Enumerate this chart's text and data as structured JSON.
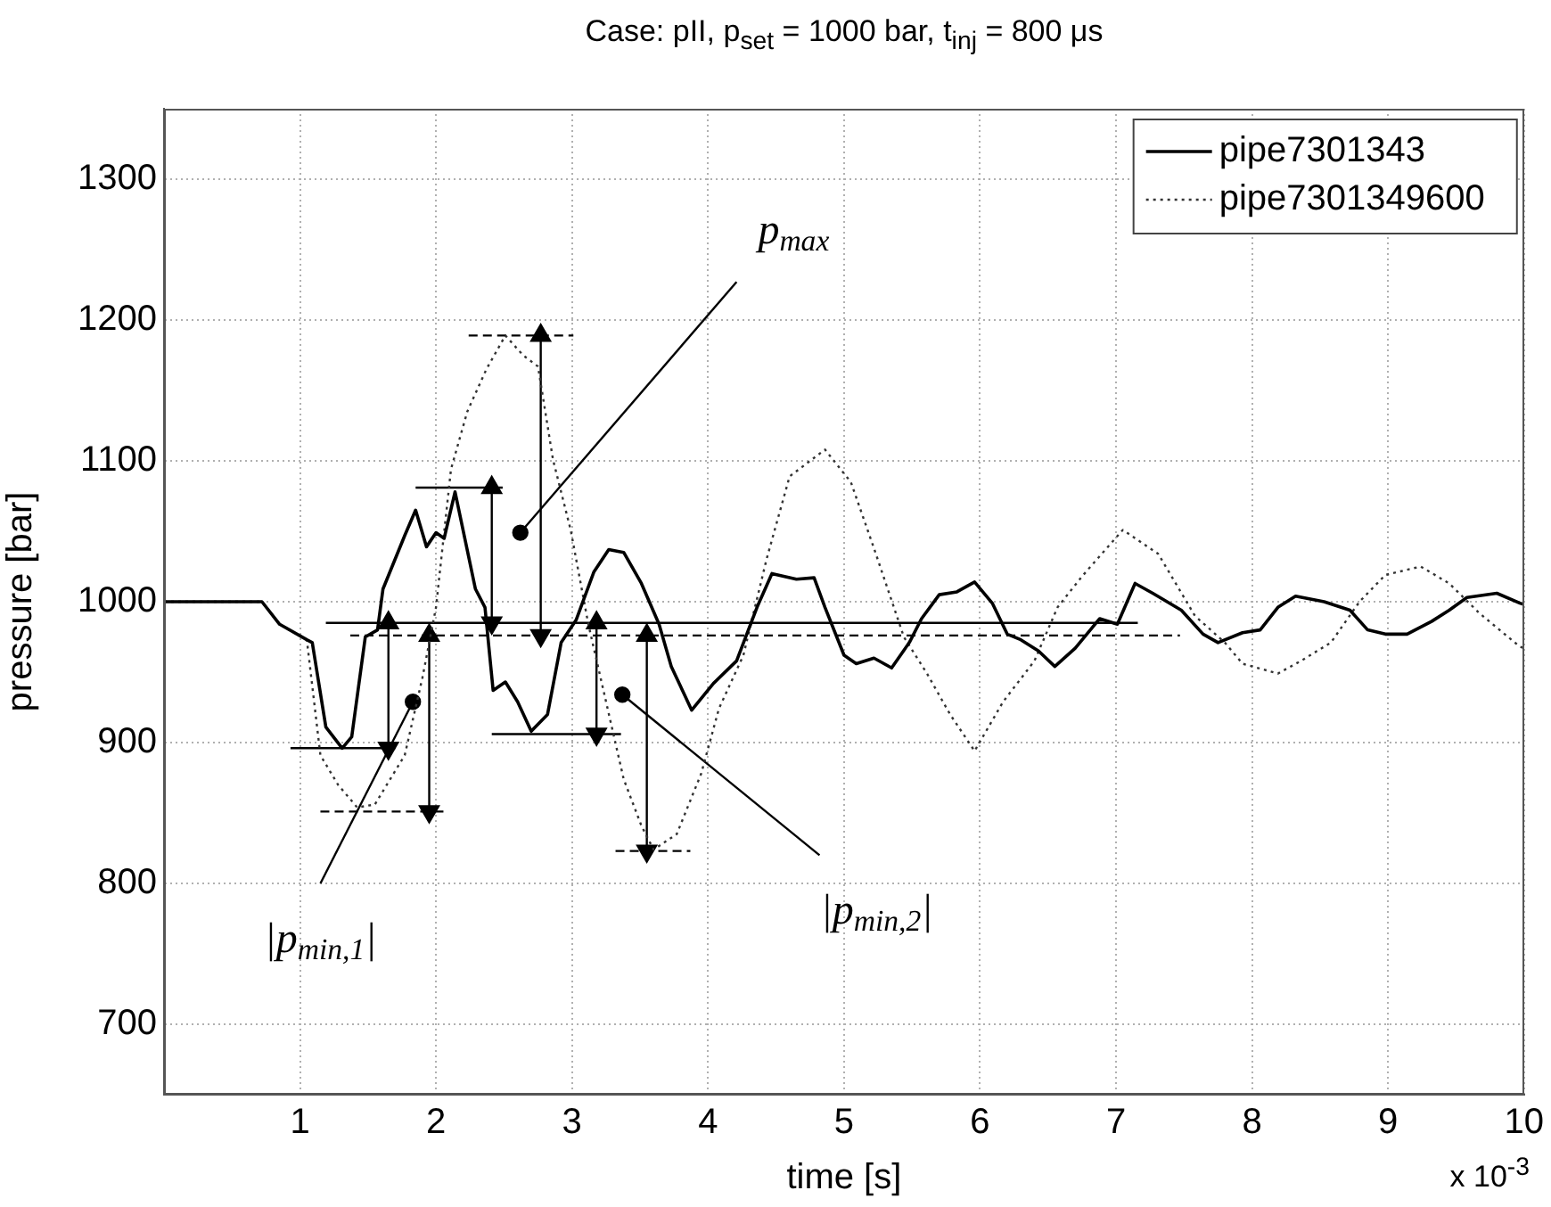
{
  "chart_data": {
    "type": "line",
    "title": "Case: pII, p$_{set}$ = 1000 bar, t$_{inj}$ = 800 μs",
    "xlabel": "time [s]",
    "ylabel": "pressure [bar]",
    "xlim": [
      0,
      10
    ],
    "ylim": [
      650,
      1350
    ],
    "xticks": [
      1,
      2,
      3,
      4,
      5,
      6,
      7,
      8,
      9,
      10
    ],
    "yticks": [
      700,
      800,
      900,
      1000,
      1100,
      1200,
      1300
    ],
    "grid": true,
    "legend": "top right",
    "series": [
      {
        "name": "pipe7301343",
        "color": "#000000",
        "line_style": "solid",
        "marker": "none",
        "x": [
          0,
          0.72,
          0.85,
          1.05,
          1.09,
          1.19,
          1.31,
          1.38,
          1.48,
          1.57,
          1.61,
          1.77,
          1.85,
          1.93,
          2.0,
          2.06,
          2.14,
          2.29,
          2.36,
          2.42,
          2.51,
          2.6,
          2.7,
          2.82,
          2.92,
          3.03,
          3.16,
          3.27,
          3.38,
          3.51,
          3.64,
          3.73,
          3.88,
          4.04,
          4.21,
          4.36,
          4.47,
          4.65,
          4.78,
          4.86,
          5.0,
          5.09,
          5.22,
          5.35,
          5.48,
          5.57,
          5.7,
          5.83,
          5.96,
          6.09,
          6.2,
          6.3,
          6.43,
          6.55,
          6.7,
          6.88,
          7.01,
          7.14,
          7.27,
          7.48,
          7.64,
          7.75,
          7.93,
          8.06,
          8.19,
          8.32,
          8.53,
          8.72,
          8.85,
          8.98,
          9.14,
          9.32,
          9.45,
          9.58,
          9.8,
          9.97,
          10
        ],
        "values": [
          1000,
          1000,
          984,
          973,
          971,
          911,
          896,
          904,
          975,
          980,
          1009,
          1047,
          1065,
          1039,
          1049,
          1045,
          1078,
          1009,
          996,
          937,
          943,
          929,
          908,
          920,
          971,
          987,
          1021,
          1037,
          1035,
          1013,
          984,
          954,
          923,
          942,
          958,
          996,
          1020,
          1016,
          1017,
          996,
          962,
          956,
          960,
          953,
          971,
          988,
          1005,
          1007,
          1014,
          999,
          977,
          973,
          965,
          954,
          967,
          988,
          984,
          1013,
          1006,
          994,
          977,
          971,
          978,
          980,
          996,
          1004,
          1000,
          994,
          980,
          977,
          977,
          986,
          994,
          1003,
          1006,
          999,
          998
        ]
      },
      {
        "name": "pipe7301349600",
        "color": "#333333",
        "line_style": "dotted",
        "marker": "none",
        "x": [
          0,
          0.72,
          0.85,
          1.05,
          1.15,
          1.28,
          1.42,
          1.55,
          1.77,
          1.9,
          2.0,
          2.11,
          2.23,
          2.37,
          2.51,
          2.64,
          2.75,
          2.86,
          2.99,
          3.12,
          3.21,
          3.38,
          3.51,
          3.6,
          3.77,
          3.95,
          4.08,
          4.26,
          4.43,
          4.6,
          4.86,
          5.05,
          5.22,
          5.44,
          5.61,
          5.78,
          5.96,
          6.17,
          6.4,
          6.57,
          6.75,
          7.05,
          7.31,
          7.58,
          7.8,
          7.93,
          8.19,
          8.36,
          8.58,
          8.79,
          8.98,
          9.24,
          9.45,
          9.67,
          9.97,
          10
        ],
        "values": [
          1000,
          1000,
          984,
          973,
          891,
          870,
          854,
          856,
          891,
          946,
          996,
          1094,
          1135,
          1165,
          1189,
          1175,
          1167,
          1101,
          1051,
          984,
          946,
          874,
          841,
          824,
          835,
          878,
          924,
          962,
          1030,
          1089,
          1108,
          1085,
          1038,
          975,
          949,
          920,
          894,
          929,
          958,
          996,
          1018,
          1051,
          1034,
          990,
          971,
          956,
          949,
          958,
          971,
          1000,
          1019,
          1025,
          1013,
          992,
          968,
          967
        ]
      },
      {
        "color": "#000000",
        "line_style": "solid",
        "marker": "none",
        "x": [
          1.19,
          7.16
        ],
        "values": [
          985,
          985
        ]
      },
      {
        "color": "#000000",
        "line_style": "dashed",
        "marker": "none",
        "x": [
          1.37,
          7.47
        ],
        "values": [
          976,
          976
        ]
      },
      {
        "color": "#000000",
        "line_style": "solid",
        "marker": "none",
        "x": [
          1.85,
          2.49
        ],
        "values": [
          1081,
          1081
        ]
      },
      {
        "color": "#000000",
        "line_style": "dashed",
        "marker": "none",
        "x": [
          2.24,
          3.01
        ],
        "values": [
          1189,
          1189
        ]
      },
      {
        "color": "#000000",
        "line_style": "solid",
        "marker": "none",
        "x": [
          0.93,
          1.7
        ],
        "values": [
          896,
          896
        ]
      },
      {
        "color": "#000000",
        "line_style": "dashed",
        "marker": "none",
        "x": [
          1.15,
          2.07
        ],
        "values": [
          851,
          851
        ]
      },
      {
        "color": "#000000",
        "line_style": "solid",
        "marker": "none",
        "x": [
          2.41,
          3.36
        ],
        "values": [
          906,
          906
        ]
      },
      {
        "color": "#000000",
        "line_style": "dashed",
        "marker": "none",
        "x": [
          3.32,
          3.87
        ],
        "values": [
          823,
          823
        ]
      },
      {
        "color": "#000000",
        "line_style": "solid",
        "marker": "triangle",
        "x": [
          2.41,
          2.41
        ],
        "values": [
          985,
          1081
        ]
      },
      {
        "color": "#000000",
        "line_style": "solid",
        "marker": "triangle",
        "x": [
          2.77,
          2.77
        ],
        "values": [
          976,
          1189
        ]
      },
      {
        "color": "#000000",
        "line_style": "solid",
        "marker": "triangle",
        "x": [
          1.65,
          1.65
        ],
        "values": [
          985,
          896
        ]
      },
      {
        "color": "#000000",
        "line_style": "solid",
        "marker": "triangle",
        "x": [
          1.95,
          1.95
        ],
        "values": [
          976,
          851
        ]
      },
      {
        "color": "#000000",
        "line_style": "solid",
        "marker": "triangle",
        "x": [
          3.18,
          3.18
        ],
        "values": [
          985,
          906
        ]
      },
      {
        "color": "#000000",
        "line_style": "solid",
        "marker": "triangle",
        "x": [
          3.55,
          3.55
        ],
        "values": [
          976,
          823
        ]
      },
      {
        "color": "#000000",
        "line_style": "solid",
        "marker": "none",
        "x": [
          2.62,
          4.21
        ],
        "values": [
          1049,
          1227
        ]
      },
      {
        "color": "#000000",
        "line_style": "solid",
        "marker": "none",
        "x": [
          1.83,
          1.15
        ],
        "values": [
          929,
          800
        ]
      },
      {
        "color": "#000000",
        "line_style": "solid",
        "marker": "none",
        "x": [
          3.37,
          4.82
        ],
        "values": [
          934,
          820
        ]
      },
      {
        "type": "scatter",
        "color": "#000000",
        "marker": "circle",
        "x": [
          2.62,
          1.83,
          3.37
        ],
        "values": [
          1049,
          929,
          934
        ]
      }
    ],
    "annotations": [
      {
        "text": "p$_{max}$",
        "x": 4.21,
        "y": 1227
      },
      {
        "text": "|p$_{min,1}$|",
        "x": 1.15,
        "y": 800
      },
      {
        "text": "|p$_{min,2}$|",
        "x": 4.82,
        "y": 820
      },
      "x 10$^{-3}$"
    ]
  }
}
